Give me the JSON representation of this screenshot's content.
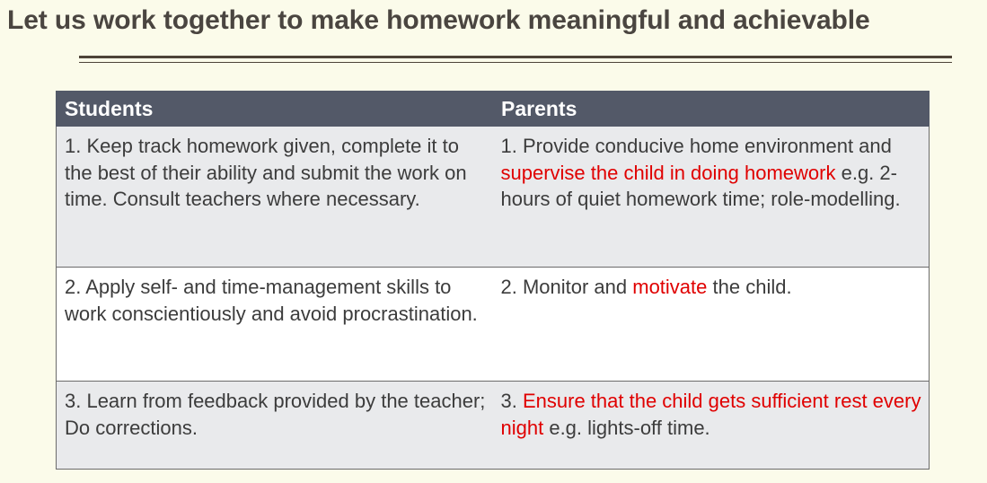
{
  "title": "Let us work together to make homework meaningful and achievable",
  "colors": {
    "background": "#fbfbea",
    "header": "#535968",
    "highlight": "#e00000",
    "row_shaded": "#e9eaec"
  },
  "table": {
    "headers": [
      "Students",
      "Parents"
    ],
    "rows": [
      {
        "student": "1. Keep track homework given, complete it to the best of their ability and submit the work on time. Consult teachers where necessary.",
        "parent": {
          "pre": "1. Provide conducive home environment and ",
          "highlight": "supervise the child in doing homework",
          "post": " e.g. 2-hours of quiet homework time; role-modelling."
        }
      },
      {
        "student": "2. Apply self- and time-management skills to work conscientiously and avoid procrastination.",
        "parent": {
          "pre": "2. Monitor and ",
          "highlight": "motivate",
          "post": " the child."
        }
      },
      {
        "student": "3. Learn from feedback provided by the teacher; Do corrections.",
        "parent": {
          "pre": "3. ",
          "highlight": "Ensure that the child gets sufficient rest every night",
          "post": " e.g. lights-off time."
        }
      }
    ]
  }
}
